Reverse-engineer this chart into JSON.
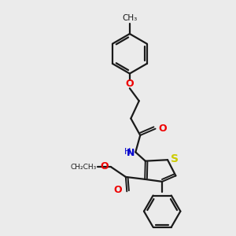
{
  "background_color": "#ebebeb",
  "bond_color": "#1a1a1a",
  "S_color": "#cccc00",
  "N_color": "#0000cc",
  "O_color": "#ee0000",
  "figsize": [
    3.0,
    3.0
  ],
  "dpi": 100,
  "xlim": [
    0,
    10
  ],
  "ylim": [
    0,
    10
  ]
}
